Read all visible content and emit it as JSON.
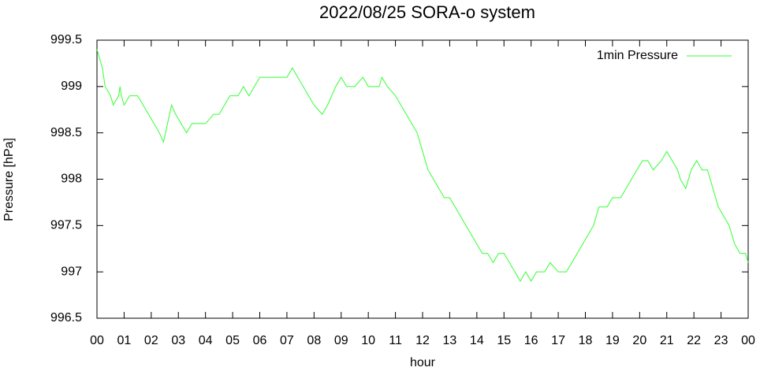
{
  "chart_data": {
    "type": "line",
    "title": "2022/08/25 SORA-o system",
    "xlabel": "hour",
    "ylabel": "Pressure [hPa]",
    "xlim": [
      0,
      24
    ],
    "ylim": [
      996.5,
      999.5
    ],
    "xticks": [
      {
        "value": 0,
        "label": "00"
      },
      {
        "value": 1,
        "label": "01"
      },
      {
        "value": 2,
        "label": "02"
      },
      {
        "value": 3,
        "label": "03"
      },
      {
        "value": 4,
        "label": "04"
      },
      {
        "value": 5,
        "label": "05"
      },
      {
        "value": 6,
        "label": "06"
      },
      {
        "value": 7,
        "label": "07"
      },
      {
        "value": 8,
        "label": "08"
      },
      {
        "value": 9,
        "label": "09"
      },
      {
        "value": 10,
        "label": "10"
      },
      {
        "value": 11,
        "label": "11"
      },
      {
        "value": 12,
        "label": "12"
      },
      {
        "value": 13,
        "label": "13"
      },
      {
        "value": 14,
        "label": "14"
      },
      {
        "value": 15,
        "label": "15"
      },
      {
        "value": 16,
        "label": "16"
      },
      {
        "value": 17,
        "label": "17"
      },
      {
        "value": 18,
        "label": "18"
      },
      {
        "value": 19,
        "label": "19"
      },
      {
        "value": 20,
        "label": "20"
      },
      {
        "value": 21,
        "label": "21"
      },
      {
        "value": 22,
        "label": "22"
      },
      {
        "value": 23,
        "label": "23"
      },
      {
        "value": 24,
        "label": "00"
      }
    ],
    "yticks": [
      996.5,
      997,
      997.5,
      998,
      998.5,
      999,
      999.5
    ],
    "grid": false,
    "legend": "top-right",
    "x": [
      0,
      0.1,
      0.2,
      0.3,
      0.5,
      0.6,
      0.8,
      0.85,
      0.9,
      1.0,
      1.2,
      1.5,
      1.7,
      1.9,
      2.1,
      2.3,
      2.45,
      2.6,
      2.75,
      2.9,
      3.1,
      3.3,
      3.5,
      4.0,
      4.3,
      4.5,
      4.7,
      4.9,
      5.2,
      5.4,
      5.6,
      5.8,
      6.0,
      6.5,
      7.0,
      7.2,
      7.4,
      7.6,
      7.8,
      8.0,
      8.3,
      8.5,
      8.8,
      9.0,
      9.2,
      9.5,
      9.8,
      10.0,
      10.4,
      10.5,
      10.7,
      11.0,
      11.2,
      11.4,
      11.6,
      11.8,
      12.0,
      12.2,
      12.4,
      12.6,
      12.8,
      13.0,
      13.2,
      13.4,
      13.6,
      13.8,
      14.0,
      14.2,
      14.4,
      14.6,
      14.8,
      15.0,
      15.2,
      15.4,
      15.6,
      15.8,
      16.0,
      16.2,
      16.5,
      16.7,
      17.0,
      17.3,
      17.5,
      17.7,
      17.9,
      18.1,
      18.3,
      18.5,
      18.8,
      19.0,
      19.3,
      19.5,
      19.7,
      19.9,
      20.1,
      20.3,
      20.5,
      20.8,
      21.0,
      21.2,
      21.4,
      21.5,
      21.7,
      21.9,
      22.1,
      22.3,
      22.5,
      22.7,
      22.9,
      23.1,
      23.3,
      23.5,
      23.7,
      23.9,
      24.0
    ],
    "series": [
      {
        "name": "1min Pressure",
        "color": "#33ff33",
        "values": [
          999.4,
          999.3,
          999.2,
          999.0,
          998.9,
          998.8,
          998.9,
          999.0,
          998.9,
          998.8,
          998.9,
          998.9,
          998.8,
          998.7,
          998.6,
          998.5,
          998.4,
          998.6,
          998.8,
          998.7,
          998.6,
          998.5,
          998.6,
          998.6,
          998.7,
          998.7,
          998.8,
          998.9,
          998.9,
          999.0,
          998.9,
          999.0,
          999.1,
          999.1,
          999.1,
          999.2,
          999.1,
          999.0,
          998.9,
          998.8,
          998.7,
          998.8,
          999.0,
          999.1,
          999.0,
          999.0,
          999.1,
          999.0,
          999.0,
          999.1,
          999.0,
          998.9,
          998.8,
          998.7,
          998.6,
          998.5,
          998.3,
          998.1,
          998.0,
          997.9,
          997.8,
          997.8,
          997.7,
          997.6,
          997.5,
          997.4,
          997.3,
          997.2,
          997.2,
          997.1,
          997.2,
          997.2,
          997.1,
          997.0,
          996.9,
          997.0,
          996.9,
          997.0,
          997.0,
          997.1,
          997.0,
          997.0,
          997.1,
          997.2,
          997.3,
          997.4,
          997.5,
          997.7,
          997.7,
          997.8,
          997.8,
          997.9,
          998.0,
          998.1,
          998.2,
          998.2,
          998.1,
          998.2,
          998.3,
          998.2,
          998.1,
          998.0,
          997.9,
          998.1,
          998.2,
          998.1,
          998.1,
          997.9,
          997.7,
          997.6,
          997.5,
          997.3,
          997.2,
          997.2,
          997.1
        ]
      }
    ]
  }
}
